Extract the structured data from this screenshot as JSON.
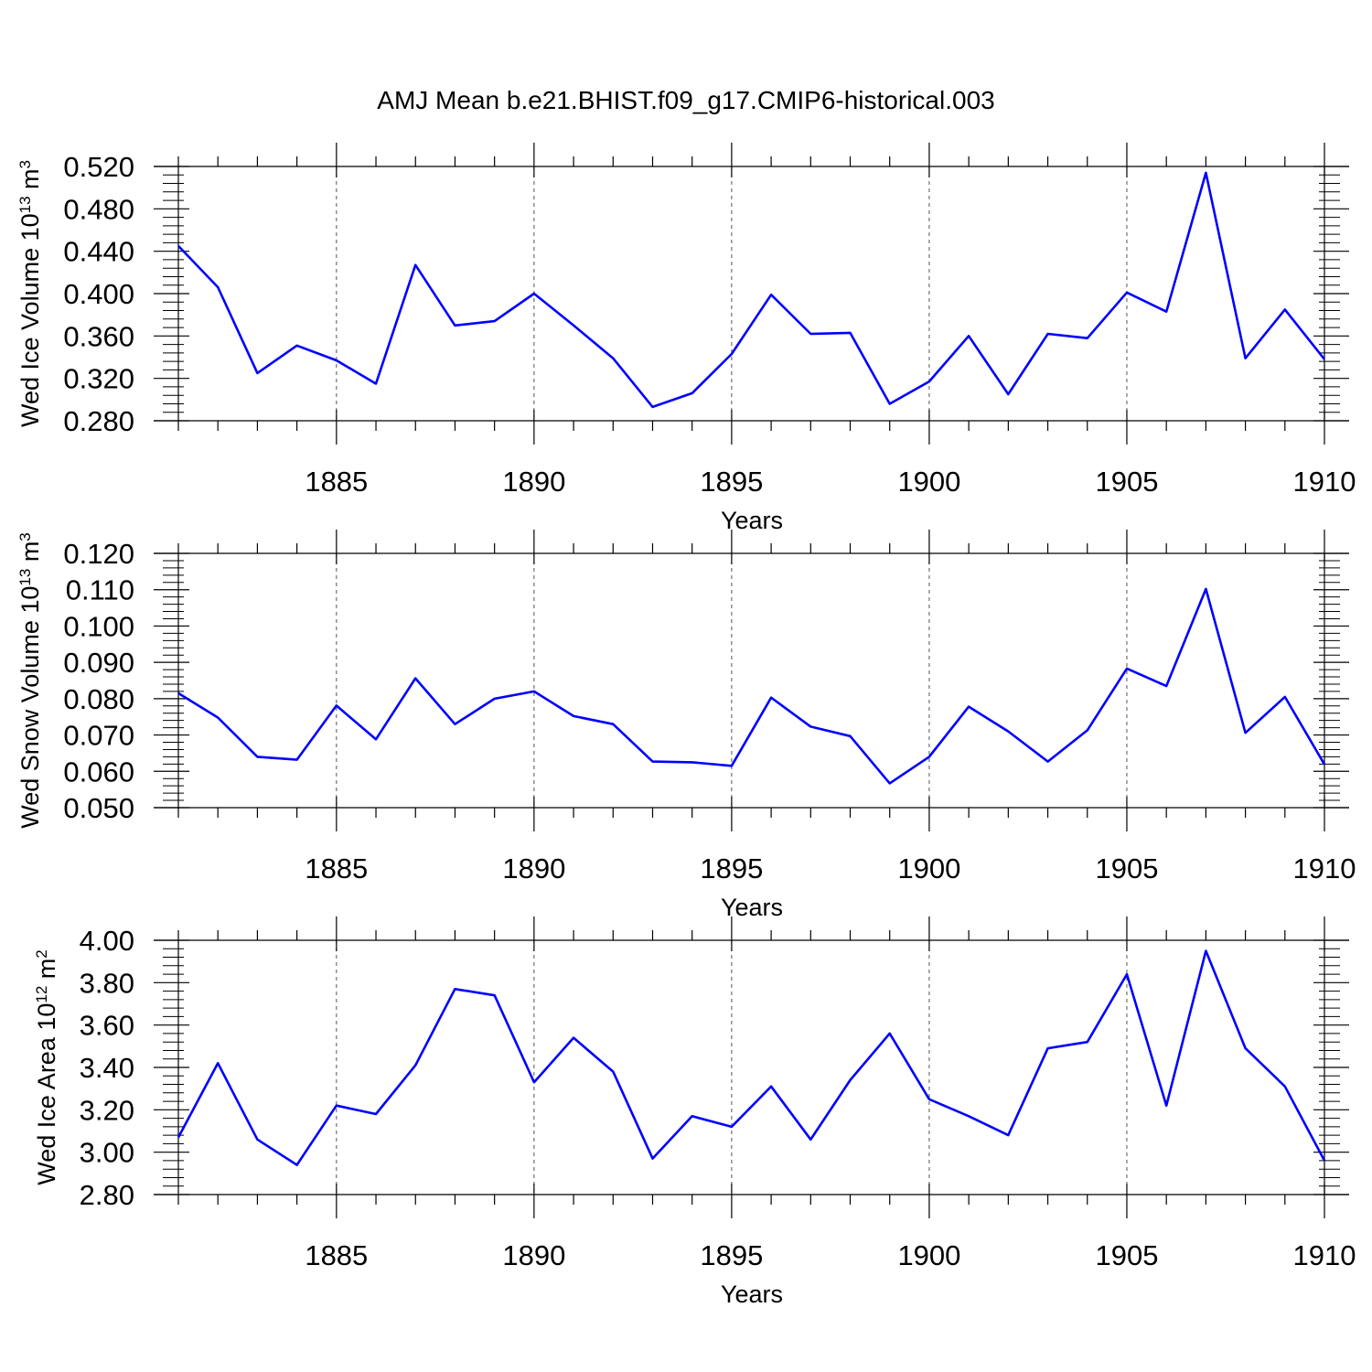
{
  "title": "AMJ Mean b.e21.BHIST.f09_g17.CMIP6-historical.003",
  "colors": {
    "series": "#0000ff",
    "axes": "#000000",
    "grid": "#555555"
  },
  "chart_data": [
    {
      "type": "line",
      "xlabel": "Years",
      "ylabel": {
        "text": "Wed Ice Volume 10",
        "exponent": "13",
        "unit": "m",
        "unit_exponent": "3"
      },
      "xlim": [
        1881,
        1910
      ],
      "ylim": [
        0.28,
        0.52
      ],
      "yticks": [
        "0.280",
        "0.320",
        "0.360",
        "0.400",
        "0.440",
        "0.480",
        "0.520"
      ],
      "xticks": [
        "1885",
        "1890",
        "1895",
        "1900",
        "1905",
        "1910"
      ],
      "grid": "vertical dashed at major x ticks",
      "x": [
        1881,
        1882,
        1883,
        1884,
        1885,
        1886,
        1887,
        1888,
        1889,
        1890,
        1891,
        1892,
        1893,
        1894,
        1895,
        1896,
        1897,
        1898,
        1899,
        1900,
        1901,
        1902,
        1903,
        1904,
        1905,
        1906,
        1907,
        1908,
        1909,
        1910
      ],
      "series": [
        {
          "values": [
            0.445,
            0.406,
            0.325,
            0.351,
            0.337,
            0.315,
            0.427,
            0.37,
            0.374,
            0.4,
            0.37,
            0.339,
            0.293,
            0.306,
            0.343,
            0.399,
            0.362,
            0.363,
            0.296,
            0.317,
            0.36,
            0.305,
            0.362,
            0.358,
            0.401,
            0.383,
            0.514,
            0.339,
            0.385,
            0.338
          ]
        }
      ]
    },
    {
      "type": "line",
      "xlabel": "Years",
      "ylabel": {
        "text": "Wed Snow Volume 10",
        "exponent": "13",
        "unit": "m",
        "unit_exponent": "3"
      },
      "xlim": [
        1881,
        1910
      ],
      "ylim": [
        0.05,
        0.12
      ],
      "yticks": [
        "0.050",
        "0.060",
        "0.070",
        "0.080",
        "0.090",
        "0.100",
        "0.110",
        "0.120"
      ],
      "xticks": [
        "1885",
        "1890",
        "1895",
        "1900",
        "1905",
        "1910"
      ],
      "grid": "vertical dashed at major x ticks",
      "x": [
        1881,
        1882,
        1883,
        1884,
        1885,
        1886,
        1887,
        1888,
        1889,
        1890,
        1891,
        1892,
        1893,
        1894,
        1895,
        1896,
        1897,
        1898,
        1899,
        1900,
        1901,
        1902,
        1903,
        1904,
        1905,
        1906,
        1907,
        1908,
        1909,
        1910
      ],
      "series": [
        {
          "values": [
            0.0815,
            0.0748,
            0.064,
            0.0632,
            0.0781,
            0.0688,
            0.0856,
            0.073,
            0.08,
            0.082,
            0.0752,
            0.073,
            0.0627,
            0.0625,
            0.0615,
            0.0803,
            0.0723,
            0.0697,
            0.0567,
            0.064,
            0.0778,
            0.071,
            0.0627,
            0.0713,
            0.0883,
            0.0835,
            0.1102,
            0.0706,
            0.0805,
            0.0619
          ]
        }
      ]
    },
    {
      "type": "line",
      "xlabel": "Years",
      "ylabel": {
        "text": "Wed Ice Area 10",
        "exponent": "12",
        "unit": "m",
        "unit_exponent": "2"
      },
      "xlim": [
        1881,
        1910
      ],
      "ylim": [
        2.8,
        4.0
      ],
      "yticks": [
        "2.80",
        "3.00",
        "3.20",
        "3.40",
        "3.60",
        "3.80",
        "4.00"
      ],
      "xticks": [
        "1885",
        "1890",
        "1895",
        "1900",
        "1905",
        "1910"
      ],
      "grid": "vertical dashed at major x ticks",
      "x": [
        1881,
        1882,
        1883,
        1884,
        1885,
        1886,
        1887,
        1888,
        1889,
        1890,
        1891,
        1892,
        1893,
        1894,
        1895,
        1896,
        1897,
        1898,
        1899,
        1900,
        1901,
        1902,
        1903,
        1904,
        1905,
        1906,
        1907,
        1908,
        1909,
        1910
      ],
      "series": [
        {
          "values": [
            3.07,
            3.42,
            3.06,
            2.94,
            3.22,
            3.18,
            3.41,
            3.77,
            3.74,
            3.33,
            3.54,
            3.38,
            2.97,
            3.17,
            3.12,
            3.31,
            3.06,
            3.34,
            3.56,
            3.25,
            3.17,
            3.08,
            3.49,
            3.52,
            3.84,
            3.22,
            3.95,
            3.49,
            3.31,
            2.96
          ]
        }
      ]
    }
  ]
}
